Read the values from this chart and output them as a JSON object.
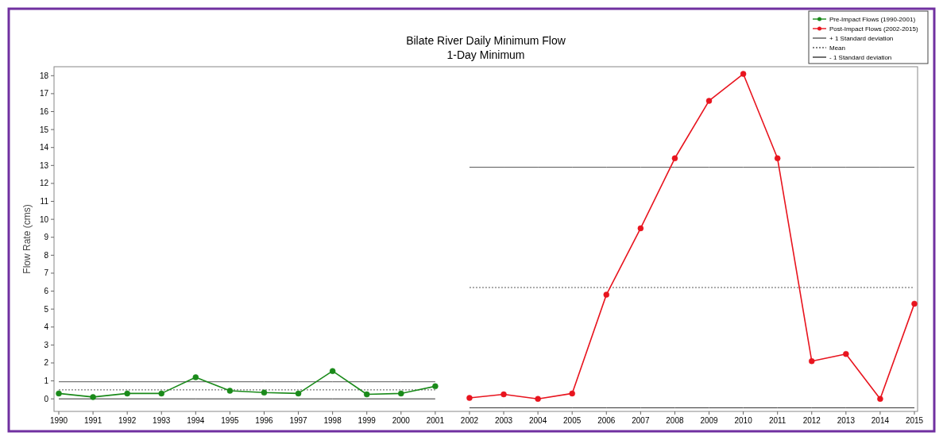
{
  "chart_data": {
    "type": "line",
    "title": "Bilate River Daily Minimum Flow",
    "subtitle": "1-Day Minimum",
    "ylabel": "Flow Rate (cms)",
    "categories": [
      "1990",
      "1991",
      "1992",
      "1993",
      "1994",
      "1995",
      "1996",
      "1997",
      "1998",
      "1999",
      "2000",
      "2001",
      "2002",
      "2003",
      "2004",
      "2005",
      "2006",
      "2007",
      "2008",
      "2009",
      "2010",
      "2011",
      "2012",
      "2013",
      "2014",
      "2015"
    ],
    "series": [
      {
        "name": "Pre-Impact Flows (1990-2001)",
        "color": "#1a8a1a",
        "marker": "circle",
        "line_style": "solid",
        "values": [
          0.3,
          0.1,
          0.3,
          0.3,
          1.2,
          0.45,
          0.35,
          0.3,
          1.55,
          0.25,
          0.3,
          0.7,
          null,
          null,
          null,
          null,
          null,
          null,
          null,
          null,
          null,
          null,
          null,
          null,
          null,
          null
        ]
      },
      {
        "name": "Post-Impact Flows (2002-2015)",
        "color": "#e8141e",
        "marker": "circle",
        "line_style": "solid",
        "values": [
          null,
          null,
          null,
          null,
          null,
          null,
          null,
          null,
          null,
          null,
          null,
          null,
          0.05,
          0.25,
          0.0,
          0.3,
          5.8,
          9.5,
          13.4,
          16.6,
          18.1,
          13.4,
          2.1,
          2.5,
          0.0,
          5.3
        ]
      },
      {
        "name": "+ 1 Standard deviation",
        "color": "#555555",
        "marker": "none",
        "line_style": "solid",
        "values": [
          0.95,
          0.95,
          0.95,
          0.95,
          0.95,
          0.95,
          0.95,
          0.95,
          0.95,
          0.95,
          0.95,
          0.95,
          null,
          null,
          null,
          null,
          null,
          null,
          null,
          null,
          null,
          null,
          null,
          null,
          null,
          null
        ]
      },
      {
        "name": "Mean",
        "color": "#555555",
        "marker": "none",
        "line_style": "dotted",
        "values": [
          0.5,
          0.5,
          0.5,
          0.5,
          0.5,
          0.5,
          0.5,
          0.5,
          0.5,
          0.5,
          0.5,
          0.5,
          null,
          null,
          null,
          null,
          null,
          null,
          null,
          null,
          null,
          null,
          null,
          null,
          null,
          null
        ]
      },
      {
        "name": "- 1 Standard deviation",
        "color": "#333333",
        "marker": "none",
        "line_style": "solid",
        "values": [
          0.0,
          0.0,
          0.0,
          0.0,
          0.0,
          0.0,
          0.0,
          0.0,
          0.0,
          0.0,
          0.0,
          0.0,
          null,
          null,
          null,
          null,
          null,
          null,
          null,
          null,
          null,
          null,
          null,
          null,
          null,
          null
        ]
      },
      {
        "color": "#555555",
        "marker": "none",
        "line_style": "solid",
        "values": [
          null,
          null,
          null,
          null,
          null,
          null,
          null,
          null,
          null,
          null,
          null,
          null,
          12.9,
          12.9,
          12.9,
          12.9,
          12.9,
          12.9,
          12.9,
          12.9,
          12.9,
          12.9,
          12.9,
          12.9,
          12.9,
          12.9
        ]
      },
      {
        "color": "#555555",
        "marker": "none",
        "line_style": "dotted",
        "values": [
          null,
          null,
          null,
          null,
          null,
          null,
          null,
          null,
          null,
          null,
          null,
          null,
          6.2,
          6.2,
          6.2,
          6.2,
          6.2,
          6.2,
          6.2,
          6.2,
          6.2,
          6.2,
          6.2,
          6.2,
          6.2,
          6.2
        ]
      },
      {
        "color": "#333333",
        "marker": "none",
        "line_style": "solid",
        "values": [
          null,
          null,
          null,
          null,
          null,
          null,
          null,
          null,
          null,
          null,
          null,
          null,
          -0.5,
          -0.5,
          -0.5,
          -0.5,
          -0.5,
          -0.5,
          -0.5,
          -0.5,
          -0.5,
          -0.5,
          -0.5,
          -0.5,
          -0.5,
          -0.5
        ]
      }
    ],
    "ylim": [
      -0.7,
      18.5
    ],
    "yticks": [
      0,
      1,
      2,
      3,
      4,
      5,
      6,
      7,
      8,
      9,
      10,
      11,
      12,
      13,
      14,
      15,
      16,
      17,
      18
    ],
    "grid": false,
    "legend": "top right"
  }
}
